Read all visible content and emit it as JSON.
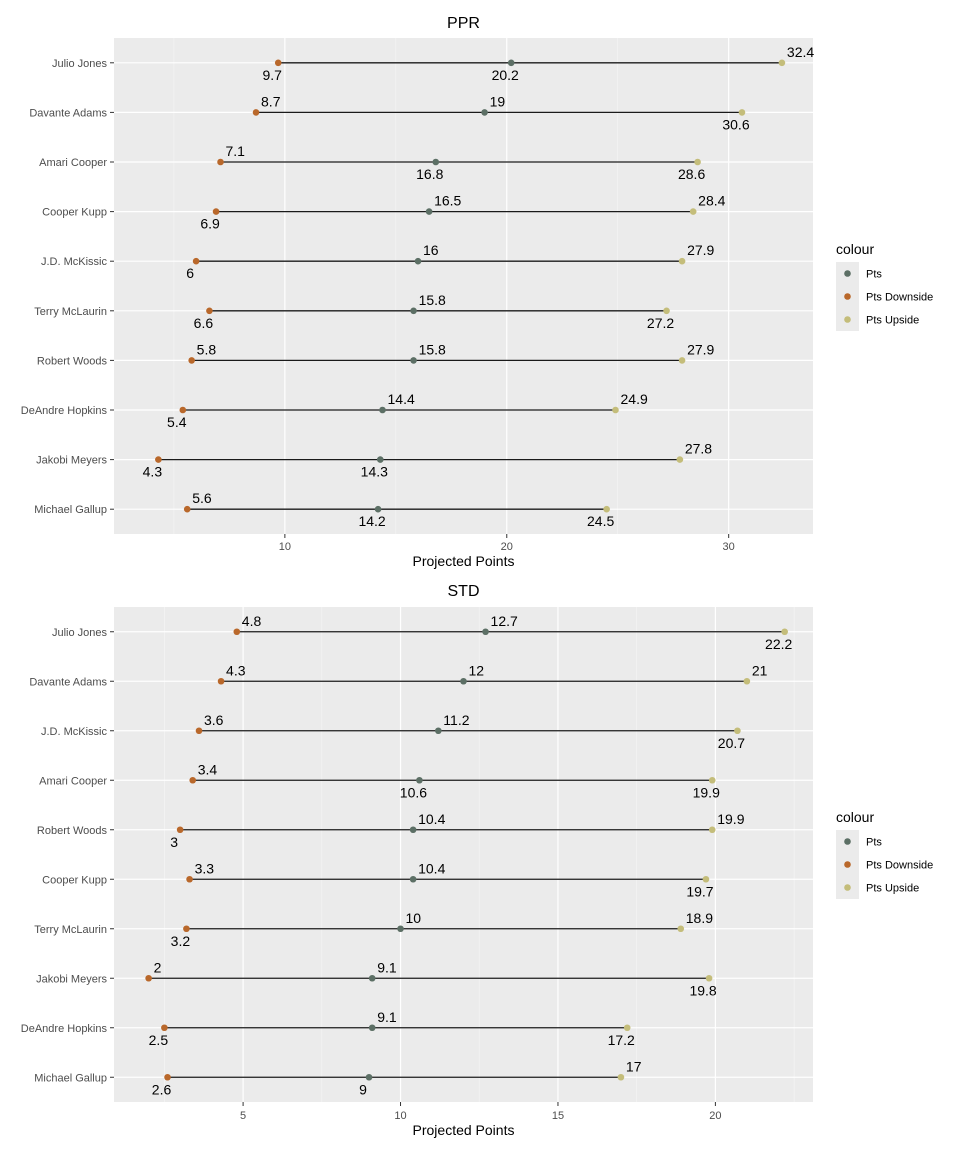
{
  "chart_data": [
    {
      "type": "dumbbell",
      "title": "PPR",
      "xlabel": "Projected Points",
      "ylabel": "",
      "xlim": [
        2.3,
        33.8
      ],
      "xticks": [
        10,
        20,
        30
      ],
      "grid": true,
      "legend": {
        "title": "colour",
        "position": "right",
        "entries": [
          "Pts",
          "Pts Downside",
          "Pts Upside"
        ]
      },
      "categories": [
        "Julio Jones",
        "Davante Adams",
        "Amari Cooper",
        "Cooper Kupp",
        "J.D. McKissic",
        "Terry McLaurin",
        "Robert Woods",
        "DeAndre Hopkins",
        "Jakobi Meyers",
        "Michael Gallup"
      ],
      "series": [
        {
          "name": "Pts Downside",
          "values": [
            9.7,
            8.7,
            7.1,
            6.9,
            6.0,
            6.6,
            5.8,
            5.4,
            4.3,
            5.6
          ]
        },
        {
          "name": "Pts",
          "values": [
            20.2,
            19.0,
            16.8,
            16.5,
            16.0,
            15.8,
            15.8,
            14.4,
            14.3,
            14.2
          ]
        },
        {
          "name": "Pts Upside",
          "values": [
            32.4,
            30.6,
            28.6,
            28.4,
            27.9,
            27.2,
            27.9,
            24.9,
            27.8,
            24.5
          ]
        }
      ],
      "labels": {
        "Pts Downside": [
          "9.7",
          "8.7",
          "7.1",
          "6.9",
          "6",
          "6.6",
          "5.8",
          "5.4",
          "4.3",
          "5.6"
        ],
        "Pts": [
          "20.2",
          "19",
          "16.8",
          "16.5",
          "16",
          "15.8",
          "15.8",
          "14.4",
          "14.3",
          "14.2"
        ],
        "Pts Upside": [
          "32.4",
          "30.6",
          "28.6",
          "28.4",
          "27.9",
          "27.2",
          "27.9",
          "24.9",
          "27.8",
          "24.5"
        ]
      },
      "label_side": {
        "Pts Downside": [
          "below",
          "above",
          "above",
          "below",
          "below",
          "below",
          "above",
          "below",
          "below",
          "above"
        ],
        "Pts": [
          "below",
          "above",
          "below",
          "above",
          "above",
          "above",
          "above",
          "above",
          "below",
          "below"
        ],
        "Pts Upside": [
          "above",
          "below",
          "below",
          "above",
          "above",
          "below",
          "above",
          "above",
          "above",
          "below"
        ]
      }
    },
    {
      "type": "dumbbell",
      "title": "STD",
      "xlabel": "Projected Points",
      "ylabel": "",
      "xlim": [
        0.9,
        23.1
      ],
      "xticks": [
        5,
        10,
        15,
        20
      ],
      "grid": true,
      "legend": {
        "title": "colour",
        "position": "right",
        "entries": [
          "Pts",
          "Pts Downside",
          "Pts Upside"
        ]
      },
      "categories": [
        "Julio Jones",
        "Davante Adams",
        "J.D. McKissic",
        "Amari Cooper",
        "Robert Woods",
        "Cooper Kupp",
        "Terry McLaurin",
        "Jakobi Meyers",
        "DeAndre Hopkins",
        "Michael Gallup"
      ],
      "series": [
        {
          "name": "Pts Downside",
          "values": [
            4.8,
            4.3,
            3.6,
            3.4,
            3.0,
            3.3,
            3.2,
            2.0,
            2.5,
            2.6
          ]
        },
        {
          "name": "Pts",
          "values": [
            12.7,
            12.0,
            11.2,
            10.6,
            10.4,
            10.4,
            10.0,
            9.1,
            9.1,
            9.0
          ]
        },
        {
          "name": "Pts Upside",
          "values": [
            22.2,
            21.0,
            20.7,
            19.9,
            19.9,
            19.7,
            18.9,
            19.8,
            17.2,
            17.0
          ]
        }
      ],
      "labels": {
        "Pts Downside": [
          "4.8",
          "4.3",
          "3.6",
          "3.4",
          "3",
          "3.3",
          "3.2",
          "2",
          "2.5",
          "2.6"
        ],
        "Pts": [
          "12.7",
          "12",
          "11.2",
          "10.6",
          "10.4",
          "10.4",
          "10",
          "9.1",
          "9.1",
          "9"
        ],
        "Pts Upside": [
          "22.2",
          "21",
          "20.7",
          "19.9",
          "19.9",
          "19.7",
          "18.9",
          "19.8",
          "17.2",
          "17"
        ]
      },
      "label_side": {
        "Pts Downside": [
          "above",
          "above",
          "above",
          "above",
          "below",
          "above",
          "below",
          "above",
          "below",
          "below"
        ],
        "Pts": [
          "above",
          "above",
          "above",
          "below",
          "above",
          "above",
          "above",
          "above",
          "above",
          "below"
        ],
        "Pts Upside": [
          "below",
          "above",
          "below",
          "below",
          "above",
          "below",
          "above",
          "below",
          "below",
          "above"
        ]
      }
    }
  ],
  "colors": {
    "Pts": "#5c6f65",
    "Pts Downside": "#b9682b",
    "Pts Upside": "#c4bd7a",
    "panel_background": "#ebebeb",
    "grid_major": "#ffffff",
    "segment": "#1a1a1a"
  }
}
